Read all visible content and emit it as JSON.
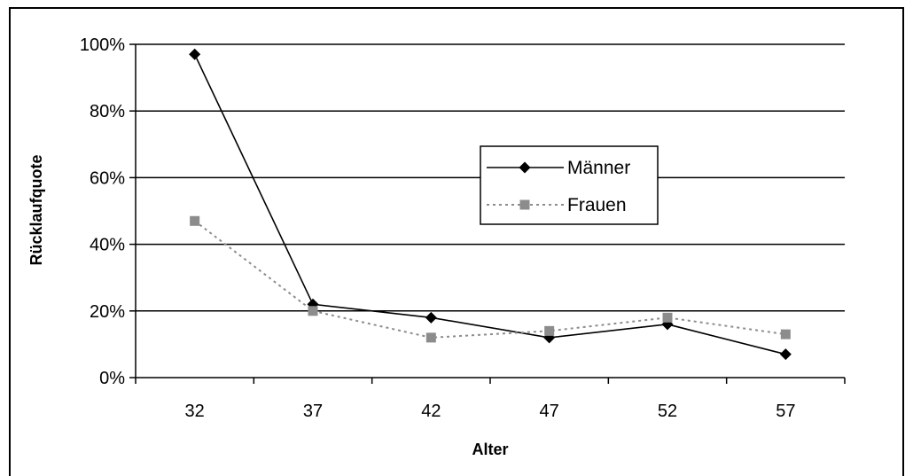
{
  "chart_data": {
    "type": "line",
    "xlabel": "Alter",
    "ylabel": "Rücklaufquote",
    "categories": [
      "32",
      "37",
      "42",
      "47",
      "52",
      "57"
    ],
    "y_ticks": [
      "0%",
      "20%",
      "40%",
      "60%",
      "80%",
      "100%"
    ],
    "ylim": [
      0,
      100
    ],
    "grid": true,
    "legend_position": "center-right",
    "series": [
      {
        "name": "Männer",
        "values": [
          97,
          22,
          18,
          12,
          16,
          7
        ],
        "color": "#000000",
        "marker": "diamond",
        "line_style": "solid"
      },
      {
        "name": "Frauen",
        "values": [
          47,
          20,
          12,
          14,
          18,
          13
        ],
        "color": "#8c8c8c",
        "marker": "square",
        "line_style": "dotted"
      }
    ]
  }
}
